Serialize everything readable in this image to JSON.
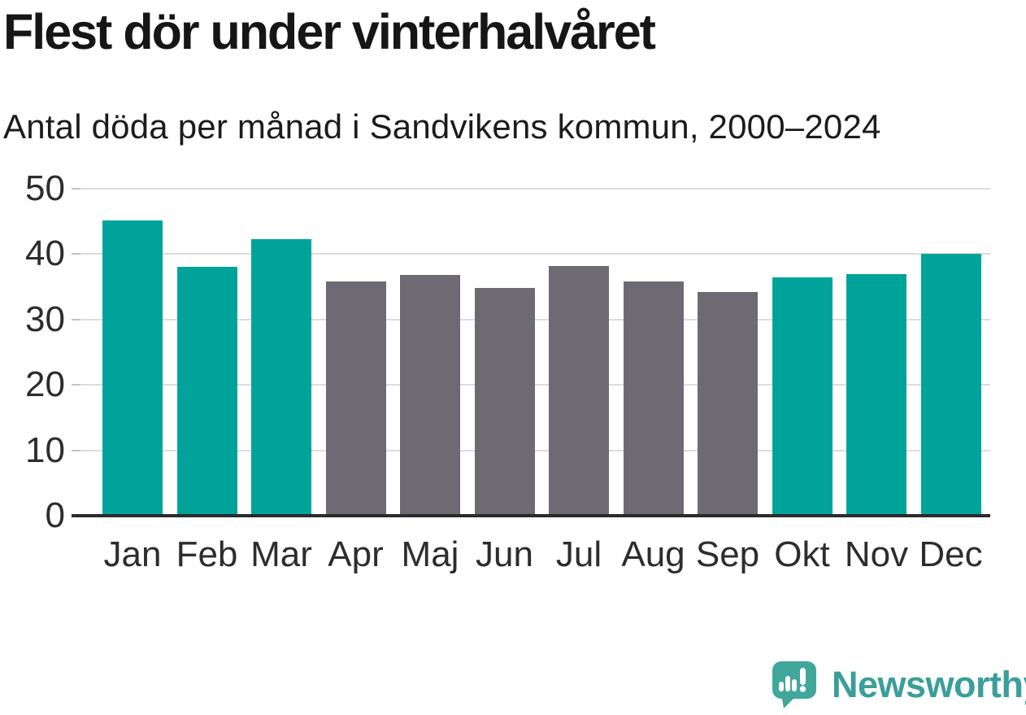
{
  "header": {
    "title": "Flest dör under vinterhalvåret",
    "subtitle": "Antal döda per månad i Sandvikens kommun, 2000–2024"
  },
  "chart_data": {
    "type": "bar",
    "title": "Flest dör under vinterhalvåret",
    "subtitle": "Antal döda per månad i Sandvikens kommun, 2000–2024",
    "categories": [
      "Jan",
      "Feb",
      "Mar",
      "Apr",
      "Maj",
      "Jun",
      "Jul",
      "Aug",
      "Sep",
      "Okt",
      "Nov",
      "Dec"
    ],
    "values": [
      45.2,
      38.1,
      42.3,
      35.8,
      36.8,
      34.8,
      38.2,
      35.8,
      34.2,
      36.5,
      37.0,
      40.1
    ],
    "xlabel": "",
    "ylabel": "",
    "ylim": [
      0,
      50
    ],
    "yticks": [
      0,
      10,
      20,
      30,
      40,
      50
    ],
    "grid": "horizontal",
    "legend": "none",
    "bar_groups": [
      "winter",
      "winter",
      "winter",
      "summer",
      "summer",
      "summer",
      "summer",
      "summer",
      "summer",
      "winter",
      "winter",
      "winter"
    ],
    "palette": {
      "winter": "#00a39a",
      "summer": "#6e6a73"
    }
  },
  "footer": {
    "brand": "Newsworthy",
    "logo_bubble_color": "#41a69b",
    "wordmark_color": "#3a9e9a"
  }
}
